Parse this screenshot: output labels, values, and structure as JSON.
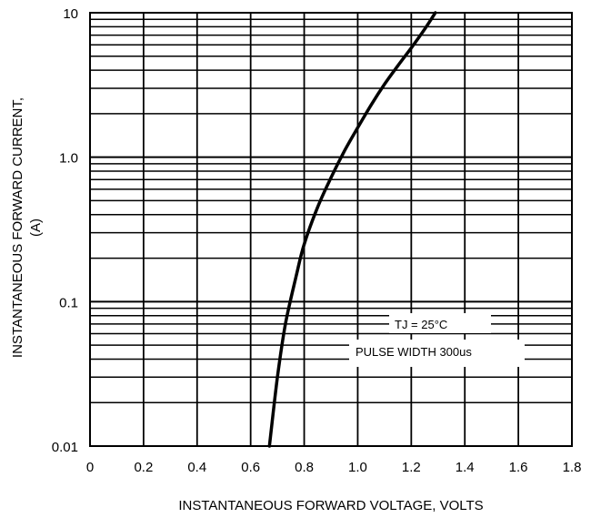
{
  "chart_data": {
    "type": "line",
    "xlabel": "INSTANTANEOUS FORWARD VOLTAGE, VOLTS",
    "ylabel_line1": "INSTANTANEOUS FORWARD CURRENT,",
    "ylabel_line2": "(A)",
    "x_scale": "linear",
    "y_scale": "log",
    "xlim": [
      0,
      1.8
    ],
    "ylim": [
      0.01,
      10
    ],
    "x_ticks": [
      "0",
      "0.2",
      "0.4",
      "0.6",
      "0.8",
      "1.0",
      "1.2",
      "1.4",
      "1.6",
      "1.8"
    ],
    "y_ticks": [
      "0.01",
      "0.1",
      "1.0",
      "10"
    ],
    "grid": true,
    "annotations": [
      "TJ = 25°C",
      "PULSE WIDTH 300us"
    ],
    "series": [
      {
        "x": [
          0.67,
          0.7,
          0.73,
          0.77,
          0.8,
          0.85,
          0.9,
          0.95,
          1.0,
          1.05,
          1.1,
          1.15,
          1.2,
          1.25,
          1.29
        ],
        "y": [
          0.01,
          0.03,
          0.07,
          0.15,
          0.25,
          0.45,
          0.72,
          1.1,
          1.6,
          2.3,
          3.2,
          4.3,
          5.7,
          7.7,
          10
        ]
      }
    ]
  }
}
